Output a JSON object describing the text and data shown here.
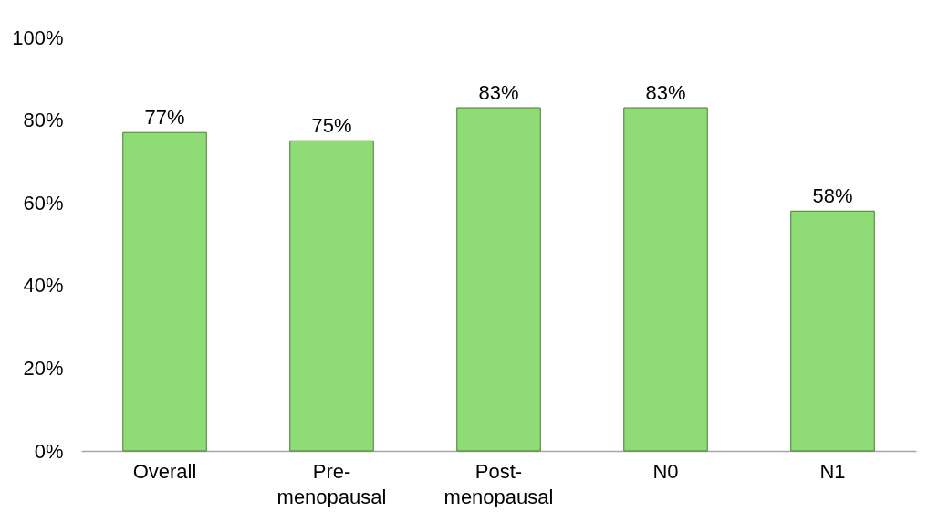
{
  "chart_data": {
    "type": "bar",
    "categories": [
      "Overall",
      "Pre-menopausal",
      "Post-menopausal",
      "N0",
      "N1"
    ],
    "values": [
      77,
      75,
      83,
      83,
      58
    ],
    "value_labels": [
      "77%",
      "75%",
      "83%",
      "83%",
      "58%"
    ],
    "color": "#8fdb75",
    "ylim": [
      0,
      100
    ],
    "yticks": [
      {
        "value": 0,
        "label": "0%"
      },
      {
        "value": 20,
        "label": "20%"
      },
      {
        "value": 40,
        "label": "40%"
      },
      {
        "value": 60,
        "label": "60%"
      },
      {
        "value": 80,
        "label": "80%"
      },
      {
        "value": 100,
        "label": "100%"
      }
    ],
    "grid": false
  }
}
